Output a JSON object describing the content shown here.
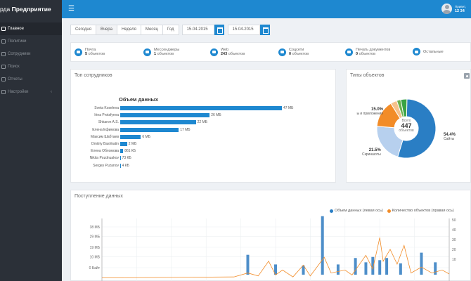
{
  "app": {
    "brand_prefix": "рда ",
    "brand_bold": "Предприятие"
  },
  "user": {
    "name": "Привет,",
    "time": "12 34"
  },
  "sidebar": {
    "items": [
      {
        "label": "Главное",
        "icon": "home-icon",
        "active": true
      },
      {
        "label": "Политики",
        "icon": "doc-icon",
        "active": false
      },
      {
        "label": "Сотрудники",
        "icon": "users-icon",
        "active": false
      },
      {
        "label": "Поиск",
        "icon": "search-icon",
        "active": false
      },
      {
        "label": "Отчеты",
        "icon": "chart-icon",
        "active": false
      },
      {
        "label": "Настройки",
        "icon": "gear-icon",
        "active": false,
        "chevron": "‹"
      }
    ]
  },
  "filters": {
    "periods": [
      "Сегодня",
      "Вчера",
      "Неделя",
      "Месяц",
      "Год"
    ],
    "active": "Вчера",
    "date_from": "15.04.2015",
    "date_to": "15.04.2015"
  },
  "stats": [
    {
      "label": "Почта",
      "value": "5",
      "suffix": " объектов",
      "icon": "mail-icon"
    },
    {
      "label": "Мессенджеры",
      "value": "1",
      "suffix": " объектов",
      "icon": "chat-icon"
    },
    {
      "label": "Web",
      "value": "243",
      "suffix": " объектов",
      "icon": "globe-icon"
    },
    {
      "label": "Соцсети",
      "value": "0",
      "suffix": " объектов",
      "icon": "social-icon"
    },
    {
      "label": "Печать документов",
      "value": "0",
      "suffix": " объектов",
      "icon": "print-icon"
    },
    {
      "label": "Остальные",
      "value": "",
      "suffix": "",
      "icon": "more-icon"
    }
  ],
  "top_staff": {
    "title": "Топ сотрудников",
    "chart_data": {
      "type": "bar",
      "title": "Объем данных",
      "categories": [
        "Sveta Koseleva",
        "Irina Protsfyeva",
        "Shkaron A.S.",
        "Елена Ефимова",
        "Максим Шабтаев",
        "Dmitriy Bashkatin",
        "Елена Обломова",
        "Nikita Pozdnuakov",
        "Sergey Puzanov"
      ],
      "values": [
        47,
        26,
        22,
        17,
        6,
        2,
        0.86,
        0.073,
        0.004
      ],
      "value_labels": [
        "47 МБ",
        "26 МБ",
        "22 МБ",
        "17 МБ",
        "6 МБ",
        "2 МБ",
        "861 КБ",
        "73 КБ",
        "4 КБ"
      ],
      "unit": "МБ"
    }
  },
  "types": {
    "title": "Типы объектов",
    "total_label": "Всего",
    "total": "447",
    "total_unit": "объектов",
    "chart_data": {
      "type": "pie",
      "slices": [
        {
          "label": "Сайты",
          "value": 54.4,
          "color": "#2a7ec4"
        },
        {
          "label": "Скриншоты",
          "value": 21.5,
          "color": "#b7d0ee"
        },
        {
          "label": "ы и приложения",
          "value": 15.0,
          "color": "#f28c28"
        },
        {
          "label": "",
          "value": 3.5,
          "color": "#f6c28c"
        },
        {
          "label": "",
          "value": 2.2,
          "color": "#6ab04c"
        },
        {
          "label": "",
          "value": 3.4,
          "color": "#3aa344"
        }
      ],
      "labels_shown": [
        {
          "pct": "54.4%",
          "name": "Сайты"
        },
        {
          "pct": "21.5%",
          "name": "Скриншоты"
        },
        {
          "pct": "15.0%",
          "name": "ы и приложения"
        }
      ]
    }
  },
  "flow": {
    "title": "Поступление данных",
    "legend": {
      "left": "Объем данных (левая ось)",
      "right": "Количество объектов (правая ось)",
      "left_color": "#2a7ec4",
      "right_color": "#f28c28"
    },
    "chart_data": {
      "type": "bar",
      "left_ticks": [
        "38 МБ",
        "29 МБ",
        "19 МБ",
        "10 МБ",
        "0 Байт"
      ],
      "left_values": [
        38,
        29,
        19,
        10,
        0
      ],
      "right_ticks": [
        "50",
        "40",
        "30",
        "20",
        "10"
      ],
      "right_values": [
        50,
        40,
        30,
        20,
        10
      ],
      "bars": [
        {
          "x": 0.42,
          "v": 12
        },
        {
          "x": 0.5,
          "v": 3
        },
        {
          "x": 0.58,
          "v": 2
        },
        {
          "x": 0.635,
          "v": 48
        },
        {
          "x": 0.68,
          "v": 3
        },
        {
          "x": 0.73,
          "v": 9
        },
        {
          "x": 0.76,
          "v": 5
        },
        {
          "x": 0.78,
          "v": 10
        },
        {
          "x": 0.8,
          "v": 7
        },
        {
          "x": 0.82,
          "v": 9
        },
        {
          "x": 0.86,
          "v": 4
        },
        {
          "x": 0.92,
          "v": 14
        },
        {
          "x": 0.96,
          "v": 5
        }
      ],
      "line": [
        [
          0.0,
          1
        ],
        [
          0.38,
          2
        ],
        [
          0.42,
          6
        ],
        [
          0.45,
          3
        ],
        [
          0.48,
          18
        ],
        [
          0.5,
          4
        ],
        [
          0.52,
          9
        ],
        [
          0.55,
          2
        ],
        [
          0.58,
          14
        ],
        [
          0.6,
          3
        ],
        [
          0.64,
          22
        ],
        [
          0.66,
          6
        ],
        [
          0.7,
          9
        ],
        [
          0.72,
          4
        ],
        [
          0.76,
          24
        ],
        [
          0.78,
          10
        ],
        [
          0.8,
          42
        ],
        [
          0.81,
          18
        ],
        [
          0.83,
          30
        ],
        [
          0.85,
          15
        ],
        [
          0.87,
          34
        ],
        [
          0.89,
          6
        ],
        [
          0.92,
          12
        ],
        [
          0.95,
          6
        ],
        [
          0.98,
          9
        ],
        [
          1.0,
          5
        ]
      ]
    }
  }
}
